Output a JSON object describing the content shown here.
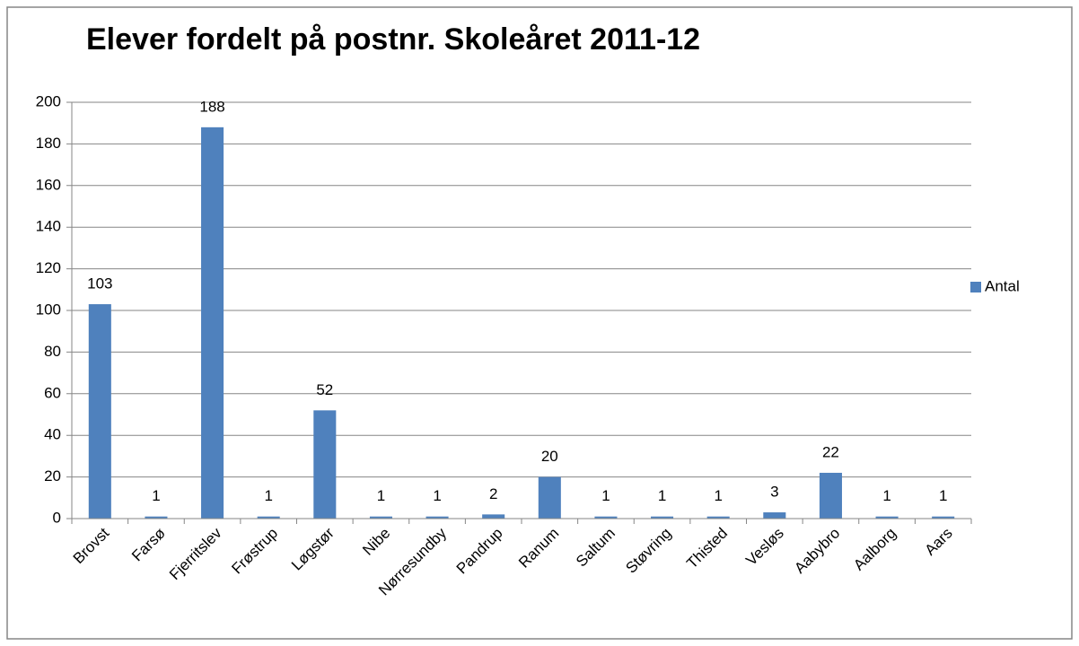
{
  "chart_data": {
    "type": "bar",
    "title": "Elever fordelt på postnr. Skoleåret 2011-12",
    "categories": [
      "Brovst",
      "Farsø",
      "Fjerritslev",
      "Frøstrup",
      "Løgstør",
      "Nibe",
      "Nørresundby",
      "Pandrup",
      "Ranum",
      "Saltum",
      "Støvring",
      "Thisted",
      "Vesløs",
      "Aabybro",
      "Aalborg",
      "Aars"
    ],
    "series": [
      {
        "name": "Antal",
        "color": "#4f81bd",
        "values": [
          103,
          1,
          188,
          1,
          52,
          1,
          1,
          2,
          20,
          1,
          1,
          1,
          3,
          22,
          1,
          1
        ]
      }
    ],
    "ylim": [
      0,
      200
    ],
    "yticks": [
      0,
      20,
      40,
      60,
      80,
      100,
      120,
      140,
      160,
      180,
      200
    ],
    "grid": true,
    "legend": "right"
  }
}
